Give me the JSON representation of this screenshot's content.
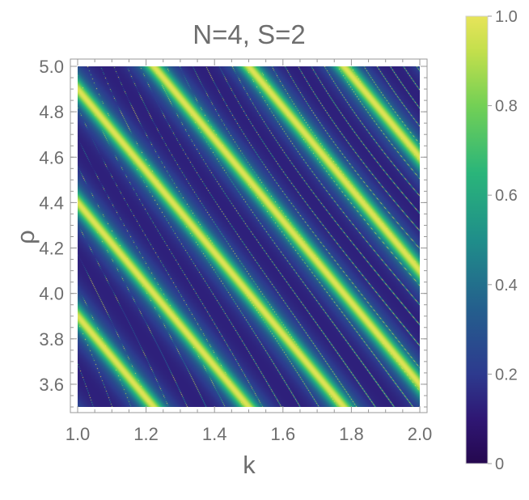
{
  "chart_data": {
    "type": "heatmap",
    "title": "N=4, S=2",
    "xlabel": "k",
    "ylabel": "ρ",
    "xlim": [
      1.0,
      2.0
    ],
    "ylim": [
      3.5,
      5.0
    ],
    "x_ticks": [
      "1.0",
      "1.2",
      "1.4",
      "1.6",
      "1.8",
      "2.0"
    ],
    "y_ticks": [
      "3.6",
      "3.8",
      "4.0",
      "4.2",
      "4.4",
      "4.6",
      "4.8",
      "5.0"
    ],
    "colorbar": {
      "range": [
        0,
        1
      ],
      "ticks": [
        "0",
        "0.2",
        "0.4",
        "0.6",
        "0.8",
        "1.0"
      ],
      "colormap": "viridis",
      "colors": [
        "#440154",
        "#3b528b",
        "#21918c",
        "#5ec962",
        "#fde725"
      ]
    },
    "frame_color": "#999999",
    "text_color": "#6e6e6e"
  }
}
